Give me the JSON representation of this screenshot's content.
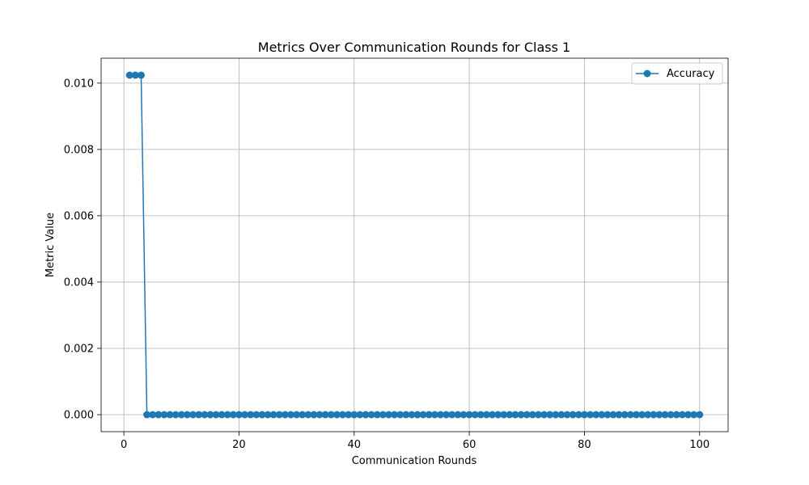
{
  "chart_data": {
    "type": "line",
    "title": "Metrics Over Communication Rounds for Class 1",
    "xlabel": "Communication Rounds",
    "ylabel": "Metric Value",
    "xlim": [
      -3.95,
      104.95
    ],
    "ylim": [
      -0.000512,
      0.010752
    ],
    "xticks": [
      0,
      20,
      40,
      60,
      80,
      100
    ],
    "yticks": [
      0.0,
      0.002,
      0.004,
      0.006,
      0.008,
      0.01
    ],
    "ytick_decimals": 3,
    "grid": true,
    "legend": "top-right",
    "series": [
      {
        "name": "Accuracy",
        "color": "#1f77b4",
        "marker": "circle",
        "x": [
          1,
          2,
          3,
          4,
          5,
          6,
          7,
          8,
          9,
          10,
          11,
          12,
          13,
          14,
          15,
          16,
          17,
          18,
          19,
          20,
          21,
          22,
          23,
          24,
          25,
          26,
          27,
          28,
          29,
          30,
          31,
          32,
          33,
          34,
          35,
          36,
          37,
          38,
          39,
          40,
          41,
          42,
          43,
          44,
          45,
          46,
          47,
          48,
          49,
          50,
          51,
          52,
          53,
          54,
          55,
          56,
          57,
          58,
          59,
          60,
          61,
          62,
          63,
          64,
          65,
          66,
          67,
          68,
          69,
          70,
          71,
          72,
          73,
          74,
          75,
          76,
          77,
          78,
          79,
          80,
          81,
          82,
          83,
          84,
          85,
          86,
          87,
          88,
          89,
          90,
          91,
          92,
          93,
          94,
          95,
          96,
          97,
          98,
          99,
          100
        ],
        "y": [
          0.01024,
          0.01024,
          0.01024,
          0,
          0,
          0,
          0,
          0,
          0,
          0,
          0,
          0,
          0,
          0,
          0,
          0,
          0,
          0,
          0,
          0,
          0,
          0,
          0,
          0,
          0,
          0,
          0,
          0,
          0,
          0,
          0,
          0,
          0,
          0,
          0,
          0,
          0,
          0,
          0,
          0,
          0,
          0,
          0,
          0,
          0,
          0,
          0,
          0,
          0,
          0,
          0,
          0,
          0,
          0,
          0,
          0,
          0,
          0,
          0,
          0,
          0,
          0,
          0,
          0,
          0,
          0,
          0,
          0,
          0,
          0,
          0,
          0,
          0,
          0,
          0,
          0,
          0,
          0,
          0,
          0,
          0,
          0,
          0,
          0,
          0,
          0,
          0,
          0,
          0,
          0,
          0,
          0,
          0,
          0,
          0,
          0,
          0,
          0,
          0,
          0
        ]
      }
    ]
  }
}
